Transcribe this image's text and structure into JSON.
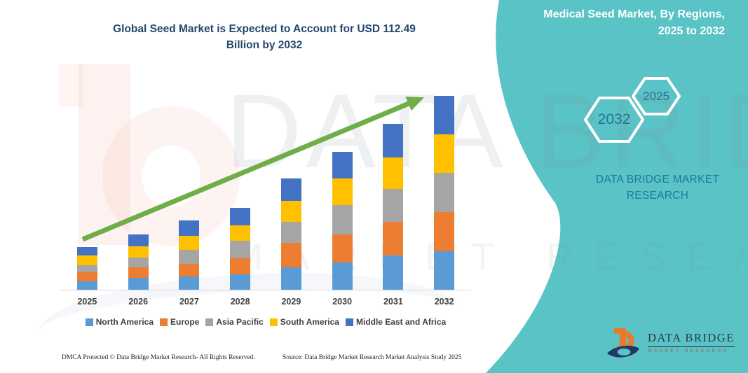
{
  "title": {
    "line1": "Global Seed Market is Expected to Account for USD 112.49",
    "line2": "Billion by 2032"
  },
  "side_panel": {
    "heading_line1": "Medical Seed Market, By Regions,",
    "heading_line2": "2025 to 2032",
    "hexagon_big_label": "2032",
    "hexagon_small_label": "2025",
    "brand_line1": "DATA BRIDGE MARKET",
    "brand_line2": "RESEARCH",
    "accent_color": "#59C3C5"
  },
  "watermark": {
    "line1": "DATA BRIDGE",
    "line2": "MARKET RESEARCH"
  },
  "logo": {
    "name": "DATA BRIDGE",
    "subtext": "MARKET RESEARCH"
  },
  "footer": {
    "left": "DMCA Protected © Data Bridge Market Research-  All Rights Reserved.",
    "right": "Source: Data Bridge Market Research  Market Analysis Study 2025"
  },
  "colors": {
    "title_navy": "#24476B",
    "panel_teal": "#59C3C5",
    "arrow_green": "#6FAE47",
    "axis_gray": "#d9d9d9"
  },
  "chart_data": {
    "type": "bar",
    "stacked": true,
    "title": "Global Seed Market is Expected to Account for USD 112.49 Billion by 2032",
    "unit": "USD Billion",
    "categories": [
      "2025",
      "2026",
      "2027",
      "2028",
      "2029",
      "2030",
      "2031",
      "2032"
    ],
    "series": [
      {
        "name": "North America",
        "color": "#5B9BD5",
        "values": [
          5.4,
          7.2,
          8.1,
          9.4,
          13.5,
          16.2,
          20.2,
          22.5
        ]
      },
      {
        "name": "Europe",
        "color": "#ED7D31",
        "values": [
          5.0,
          6.3,
          7.4,
          9.4,
          14.1,
          16.2,
          19.5,
          22.9
        ]
      },
      {
        "name": "Asia Pacific",
        "color": "#A5A5A5",
        "values": [
          4.0,
          5.4,
          8.1,
          10.1,
          12.1,
          16.9,
          18.9,
          22.4
        ]
      },
      {
        "name": "South America",
        "color": "#FFC000",
        "values": [
          5.8,
          6.8,
          8.1,
          8.8,
          12.1,
          15.5,
          18.2,
          22.5
        ]
      },
      {
        "name": "Middle East and Africa",
        "color": "#4472C4",
        "values": [
          4.9,
          6.8,
          8.8,
          10.1,
          12.8,
          15.5,
          19.5,
          22.2
        ]
      }
    ],
    "totals": [
      25.1,
      32.5,
      40.5,
      47.8,
      64.6,
      80.3,
      96.3,
      112.5
    ],
    "ylim": [
      0,
      120
    ],
    "xlabel": "",
    "ylabel": "",
    "grid": false,
    "legend_position": "bottom",
    "annotations": [
      "upward green trend arrow from 2025 to 2032"
    ]
  }
}
